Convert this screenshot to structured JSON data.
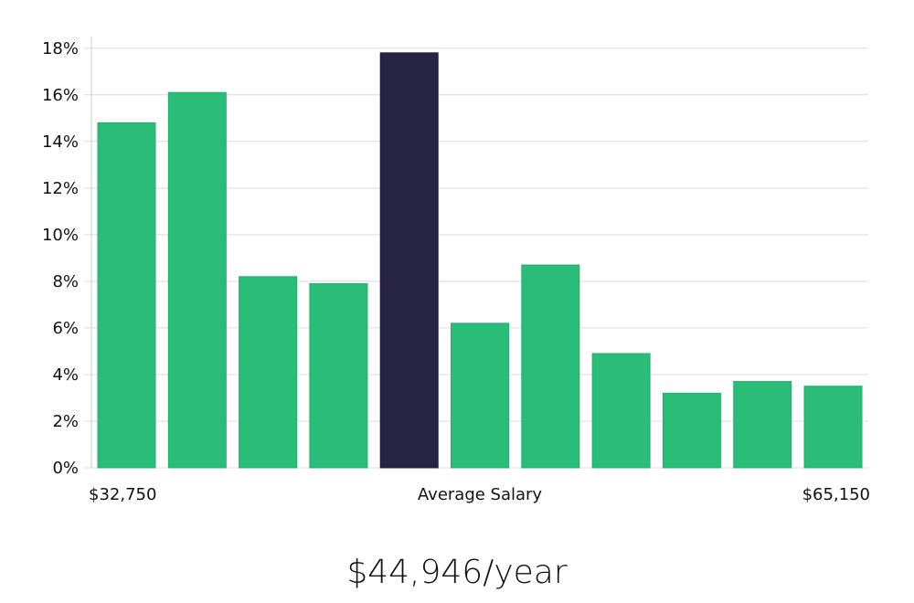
{
  "chart_data": {
    "type": "bar",
    "title": "",
    "xlabel": "",
    "ylabel": "",
    "ylim": [
      0,
      18.5
    ],
    "yticks": [
      0,
      2,
      4,
      6,
      8,
      10,
      12,
      14,
      16,
      18
    ],
    "ytick_suffix": "%",
    "grid": true,
    "values": [
      14.8,
      16.1,
      8.2,
      7.9,
      17.8,
      6.2,
      8.7,
      4.9,
      3.2,
      3.7,
      3.5
    ],
    "highlight_index": 4,
    "x_labels": {
      "left": "$32,750",
      "center": "Average Salary",
      "right": "$65,150"
    }
  },
  "colors": {
    "bar": "#2abd77",
    "highlight": "#282444",
    "grid": "#dcdcdc",
    "axis": "#cfcfcf"
  },
  "summary": {
    "salary_text": "$44,946/year"
  }
}
